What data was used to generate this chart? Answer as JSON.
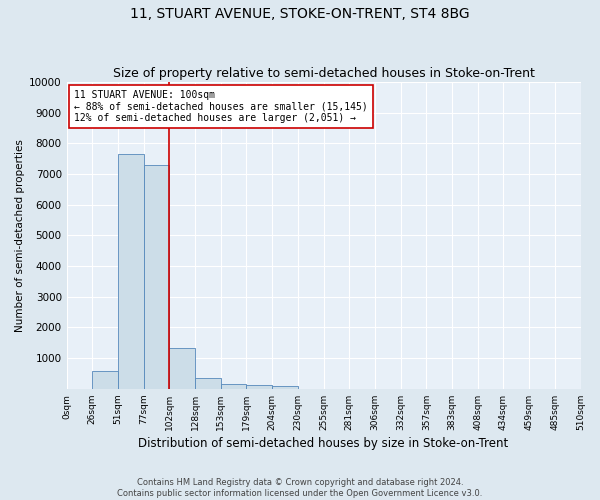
{
  "title": "11, STUART AVENUE, STOKE-ON-TRENT, ST4 8BG",
  "subtitle": "Size of property relative to semi-detached houses in Stoke-on-Trent",
  "xlabel": "Distribution of semi-detached houses by size in Stoke-on-Trent",
  "ylabel": "Number of semi-detached properties",
  "footer1": "Contains HM Land Registry data © Crown copyright and database right 2024.",
  "footer2": "Contains public sector information licensed under the Open Government Licence v3.0.",
  "bin_labels": [
    "0sqm",
    "26sqm",
    "51sqm",
    "77sqm",
    "102sqm",
    "128sqm",
    "153sqm",
    "179sqm",
    "204sqm",
    "230sqm",
    "255sqm",
    "281sqm",
    "306sqm",
    "332sqm",
    "357sqm",
    "383sqm",
    "408sqm",
    "434sqm",
    "459sqm",
    "485sqm",
    "510sqm"
  ],
  "bar_values": [
    0,
    580,
    7650,
    7280,
    1330,
    340,
    150,
    130,
    100,
    0,
    0,
    0,
    0,
    0,
    0,
    0,
    0,
    0,
    0,
    0
  ],
  "bar_color": "#ccdde8",
  "bar_edge_color": "#5588bb",
  "vline_x": 4,
  "vline_color": "#cc0000",
  "annotation_text": "11 STUART AVENUE: 100sqm\n← 88% of semi-detached houses are smaller (15,145)\n12% of semi-detached houses are larger (2,051) →",
  "annotation_box_color": "#ffffff",
  "annotation_box_edge": "#cc0000",
  "ylim": [
    0,
    10000
  ],
  "yticks": [
    0,
    1000,
    2000,
    3000,
    4000,
    5000,
    6000,
    7000,
    8000,
    9000,
    10000
  ],
  "bg_color": "#dde8f0",
  "plot_bg_color": "#e8f0f8",
  "title_fontsize": 10,
  "subtitle_fontsize": 9
}
